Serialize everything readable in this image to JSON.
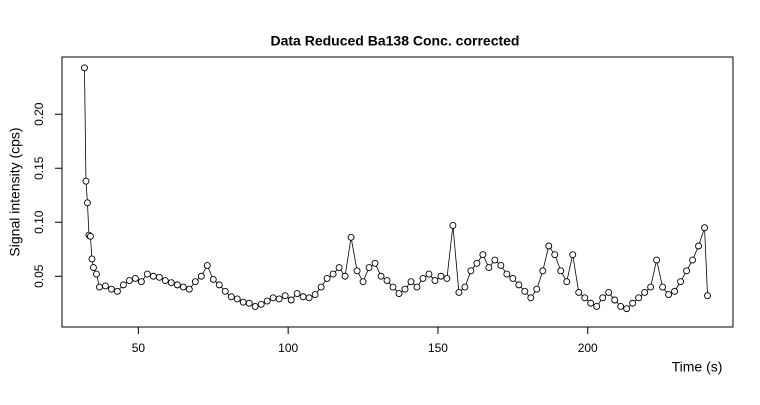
{
  "chart_data": {
    "type": "line-points",
    "title": "Data Reduced Ba138 Conc. corrected",
    "x_label": "Time (s)",
    "y_label": "Signal intensity (cps)",
    "x": [
      32,
      32.5,
      33,
      33.5,
      34,
      34.5,
      35,
      36,
      37,
      39,
      41,
      43,
      45,
      47,
      49,
      51,
      53,
      55,
      57,
      59,
      61,
      63,
      65,
      67,
      69,
      71,
      73,
      75,
      77,
      79,
      81,
      83,
      85,
      87,
      89,
      91,
      93,
      95,
      97,
      99,
      101,
      103,
      105,
      107,
      109,
      111,
      113,
      115,
      117,
      119,
      121,
      123,
      125,
      127,
      129,
      131,
      133,
      135,
      137,
      139,
      141,
      143,
      145,
      147,
      149,
      151,
      153,
      155,
      157,
      159,
      161,
      163,
      165,
      167,
      169,
      171,
      173,
      175,
      177,
      179,
      181,
      183,
      185,
      187,
      189,
      191,
      193,
      195,
      197,
      199,
      201,
      203,
      205,
      207,
      209,
      211,
      213,
      215,
      217,
      219,
      221,
      223,
      225,
      227,
      229,
      231,
      233,
      235,
      237,
      239,
      240
    ],
    "values": [
      0.243,
      0.138,
      0.118,
      0.088,
      0.087,
      0.066,
      0.058,
      0.052,
      0.04,
      0.041,
      0.038,
      0.036,
      0.042,
      0.046,
      0.048,
      0.045,
      0.052,
      0.05,
      0.049,
      0.046,
      0.044,
      0.042,
      0.04,
      0.038,
      0.045,
      0.05,
      0.06,
      0.047,
      0.042,
      0.036,
      0.031,
      0.029,
      0.026,
      0.025,
      0.022,
      0.024,
      0.027,
      0.03,
      0.029,
      0.032,
      0.028,
      0.034,
      0.031,
      0.03,
      0.033,
      0.04,
      0.048,
      0.052,
      0.058,
      0.05,
      0.086,
      0.055,
      0.045,
      0.058,
      0.062,
      0.05,
      0.046,
      0.04,
      0.034,
      0.038,
      0.045,
      0.04,
      0.048,
      0.052,
      0.046,
      0.05,
      0.048,
      0.097,
      0.035,
      0.04,
      0.055,
      0.062,
      0.07,
      0.058,
      0.065,
      0.06,
      0.052,
      0.048,
      0.042,
      0.036,
      0.03,
      0.038,
      0.055,
      0.078,
      0.07,
      0.055,
      0.045,
      0.07,
      0.035,
      0.03,
      0.025,
      0.022,
      0.03,
      0.035,
      0.028,
      0.022,
      0.02,
      0.025,
      0.03,
      0.035,
      0.04,
      0.065,
      0.04,
      0.033,
      0.036,
      0.045,
      0.055,
      0.065,
      0.078,
      0.095,
      0.032
    ],
    "color": "#000000",
    "xlim": [
      24.5,
      248.5
    ],
    "ylim": [
      0.003,
      0.253
    ],
    "xticks": [
      50,
      100,
      150,
      200
    ],
    "yticks": [
      0.05,
      {
        "value": 0.1,
        "label": "0.10"
      },
      0.15,
      {
        "value": 0.2,
        "label": "0.20"
      }
    ]
  }
}
